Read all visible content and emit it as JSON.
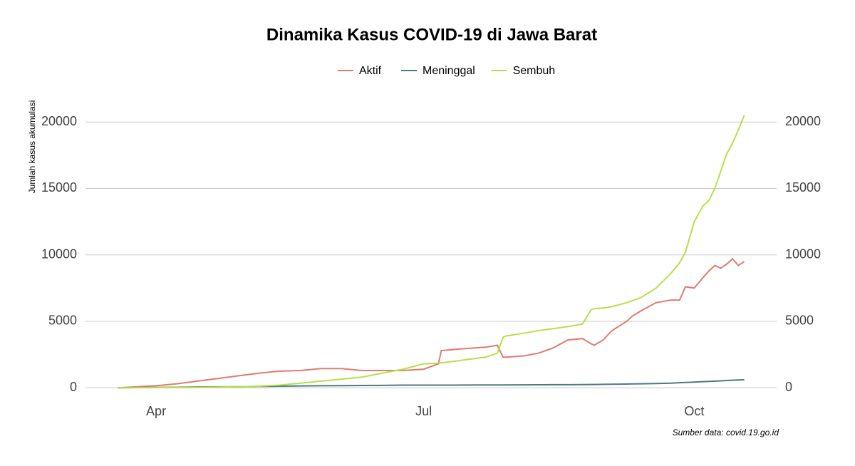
{
  "chart_data": {
    "type": "line",
    "title": "Dinamika Kasus COVID-19 di Jawa Barat",
    "y_label": "Jumlah kasus akumulasi",
    "caption": "Sumber data: covid.19.go.id",
    "x": [
      -13,
      0,
      7,
      14,
      21,
      28,
      35,
      42,
      49,
      56,
      63,
      70,
      77,
      84,
      91,
      96,
      97,
      105,
      112,
      116,
      118,
      119,
      125,
      130,
      135,
      140,
      145,
      148,
      149,
      152,
      155,
      160,
      162,
      165,
      170,
      175,
      178,
      180,
      183,
      186,
      188,
      190,
      192,
      194,
      196,
      198,
      200
    ],
    "series": [
      {
        "name": "Aktif",
        "color": "#e07b6f",
        "values": [
          0,
          150,
          300,
          500,
          700,
          900,
          1100,
          1250,
          1300,
          1450,
          1450,
          1300,
          1300,
          1300,
          1400,
          1800,
          2800,
          2950,
          3050,
          3200,
          2300,
          2300,
          2400,
          2600,
          3000,
          3600,
          3700,
          3300,
          3200,
          3600,
          4300,
          5000,
          5400,
          5800,
          6400,
          6600,
          6600,
          7600,
          7500,
          8300,
          8800,
          9200,
          9000,
          9300,
          9700,
          9200,
          9500
        ]
      },
      {
        "name": "Meninggal",
        "color": "#4a7b7b",
        "values": [
          0,
          20,
          40,
          60,
          70,
          80,
          100,
          120,
          140,
          150,
          160,
          170,
          180,
          200,
          200,
          200,
          200,
          205,
          210,
          210,
          210,
          210,
          220,
          225,
          230,
          230,
          240,
          250,
          250,
          260,
          270,
          280,
          290,
          300,
          320,
          350,
          380,
          400,
          430,
          460,
          480,
          500,
          520,
          550,
          570,
          590,
          600
        ]
      },
      {
        "name": "Sembuh",
        "color": "#b5e04a",
        "values": [
          0,
          10,
          20,
          30,
          50,
          80,
          120,
          200,
          350,
          500,
          650,
          800,
          1100,
          1400,
          1800,
          1850,
          1870,
          2100,
          2300,
          2600,
          3800,
          3900,
          4100,
          4300,
          4450,
          4600,
          4800,
          5900,
          5950,
          6000,
          6100,
          6400,
          6550,
          6800,
          7500,
          8600,
          9400,
          10200,
          12500,
          13700,
          14100,
          15000,
          16300,
          17600,
          18400,
          19400,
          20500
        ]
      }
    ],
    "xlim": [
      -24,
      211
    ],
    "xticks": [
      {
        "value": 0,
        "label": "Apr"
      },
      {
        "value": 91,
        "label": "Jul"
      },
      {
        "value": 183,
        "label": "Oct"
      }
    ],
    "ylim": [
      -900,
      20600
    ],
    "yticks": [
      0,
      5000,
      10000,
      15000,
      20000
    ],
    "grid": true,
    "legend": "top"
  }
}
